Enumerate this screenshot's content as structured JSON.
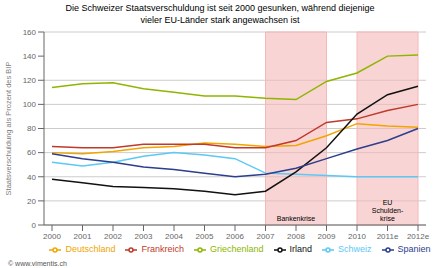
{
  "chart_data": {
    "type": "line",
    "title": "Die Schweizer Staatsverschuldung ist seit 2000 gesunken, während diejenige\nvieler EU-Länder stark angewachsen ist",
    "y_label": "Staatsverschuldung als Prozent des BIP",
    "note": "© www.vimentis.ch",
    "categories": [
      "2000",
      "2001",
      "2002",
      "2003",
      "2004",
      "2005",
      "2006",
      "2007",
      "2008",
      "2009",
      "2010",
      "2011e",
      "2012e"
    ],
    "series": [
      {
        "name": "Schweiz",
        "color": "#5bc8f5",
        "values": [
          52,
          49,
          52,
          57,
          60,
          58,
          55,
          43,
          42,
          41,
          40,
          40,
          40
        ]
      },
      {
        "name": "Deutschland",
        "color": "#f0a500",
        "values": [
          60,
          59,
          61,
          64,
          65,
          68,
          67,
          65,
          66,
          74,
          84,
          82,
          81
        ]
      },
      {
        "name": "Frankreich",
        "color": "#c0392b",
        "values": [
          65,
          64,
          64,
          67,
          67,
          67,
          64,
          64,
          70,
          85,
          88,
          95,
          100
        ]
      },
      {
        "name": "Griechenland",
        "color": "#8db600",
        "values": [
          114,
          117,
          118,
          113,
          110,
          107,
          107,
          105,
          104,
          119,
          126,
          140,
          141
        ]
      },
      {
        "name": "Irland",
        "color": "#111111",
        "values": [
          38,
          35,
          32,
          31,
          30,
          28,
          25,
          28,
          44,
          64,
          92,
          108,
          115
        ]
      },
      {
        "name": "Spanien",
        "color": "#2c3e8c",
        "values": [
          59,
          55,
          52,
          48,
          46,
          43,
          40,
          42,
          47,
          55,
          63,
          70,
          80
        ]
      }
    ],
    "shaded_regions": [
      {
        "x_start": "2007",
        "x_end": "2009",
        "label": "Bankenkrise",
        "color": "#f5b8b8"
      },
      {
        "x_start": "2010",
        "x_end": "2012e",
        "label": "EU\nSchulden-\nkrise",
        "color": "#f5b8b8"
      }
    ],
    "ylim": [
      0,
      160
    ],
    "yticks": [
      0,
      20,
      40,
      60,
      80,
      100,
      120,
      140,
      160
    ],
    "grid": true,
    "legend": "bottom"
  }
}
